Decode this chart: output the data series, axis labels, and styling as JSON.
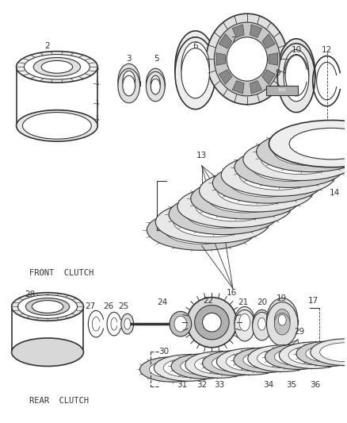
{
  "background_color": "#ffffff",
  "line_color": "#333333",
  "front_clutch_label": "FRONT  CLUTCH",
  "rear_clutch_label": "REAR  CLUTCH",
  "fig_width": 4.38,
  "fig_height": 5.33,
  "dpi": 100
}
